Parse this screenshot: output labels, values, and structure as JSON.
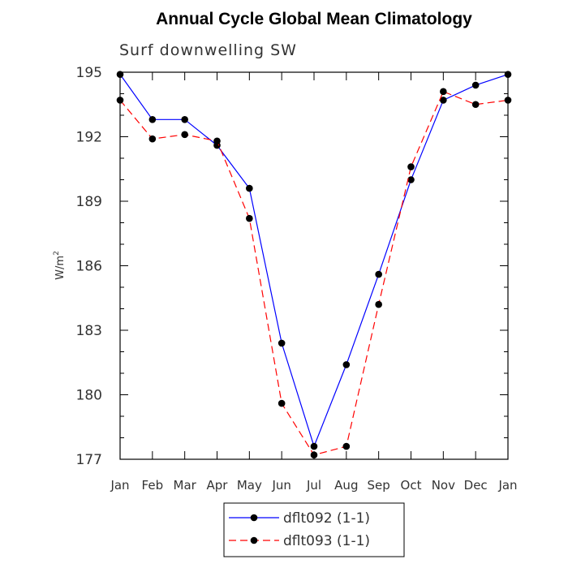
{
  "chart_data": {
    "type": "line",
    "title": "Annual Cycle Global Mean Climatology",
    "subtitle": "Surf downwelling SW",
    "ylabel": "W/m",
    "ylabel_superscript": "2",
    "xlabel": "",
    "categories": [
      "Jan",
      "Feb",
      "Mar",
      "Apr",
      "May",
      "Jun",
      "Jul",
      "Aug",
      "Sep",
      "Oct",
      "Nov",
      "Dec",
      "Jan"
    ],
    "ylim": [
      177,
      195
    ],
    "yticks": [
      177,
      180,
      183,
      186,
      189,
      192,
      195
    ],
    "grid": false,
    "legend_position": "bottom",
    "series": [
      {
        "name": "dflt092 (1-1)",
        "color": "#0000ff",
        "dash": "solid",
        "marker": "filled-circle",
        "values": [
          194.9,
          192.8,
          192.8,
          191.6,
          189.6,
          182.4,
          177.6,
          181.4,
          185.6,
          190.0,
          193.7,
          194.4,
          194.9
        ]
      },
      {
        "name": "dflt093 (1-1)",
        "color": "#ff0000",
        "dash": "dashed",
        "marker": "filled-circle",
        "values": [
          193.7,
          191.9,
          192.1,
          191.8,
          188.2,
          179.6,
          177.2,
          177.6,
          184.2,
          190.6,
          194.1,
          193.5,
          193.7
        ]
      }
    ]
  }
}
